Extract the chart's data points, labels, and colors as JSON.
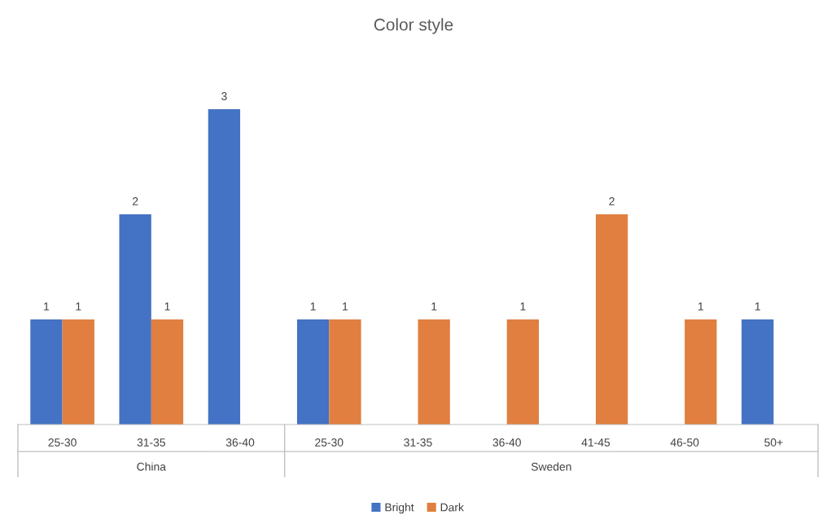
{
  "chart_data": {
    "type": "bar",
    "title": "Color style",
    "categories": [
      "25-30",
      "31-35",
      "36-40",
      "25-30",
      "31-35",
      "36-40",
      "41-45",
      "46-50",
      "50+"
    ],
    "series": [
      {
        "name": "Bright",
        "color": "#4472c4",
        "values": [
          1,
          2,
          3,
          1,
          null,
          null,
          null,
          null,
          1
        ]
      },
      {
        "name": "Dark",
        "color": "#e07f3f",
        "values": [
          1,
          1,
          null,
          1,
          1,
          1,
          2,
          1,
          null
        ]
      }
    ],
    "annotations": [
      "China",
      "Sweden"
    ],
    "data_labels": true,
    "legend": "bottom",
    "grid": false
  }
}
